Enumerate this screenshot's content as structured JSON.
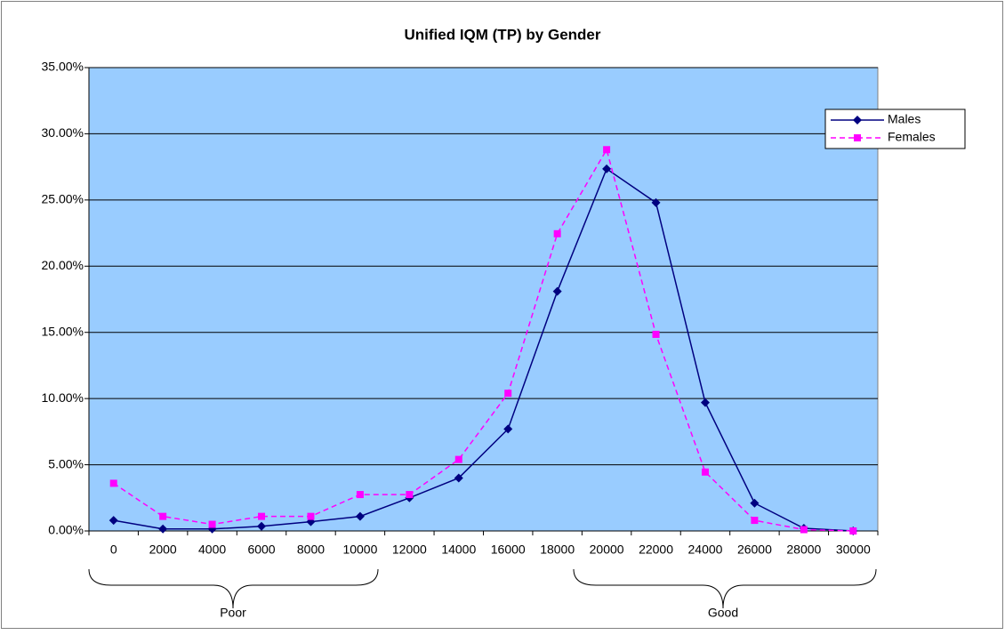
{
  "chart_data": {
    "type": "line",
    "title": "Unified IQM (TP) by Gender",
    "categories": [
      "0",
      "2000",
      "4000",
      "6000",
      "8000",
      "10000",
      "12000",
      "14000",
      "16000",
      "18000",
      "20000",
      "22000",
      "24000",
      "26000",
      "28000",
      "30000"
    ],
    "series": [
      {
        "name": "Males",
        "color": "#000080",
        "line_style": "solid",
        "marker": "diamond",
        "values": [
          0.8,
          0.15,
          0.15,
          0.35,
          0.7,
          1.1,
          2.5,
          4.0,
          7.7,
          18.1,
          27.35,
          24.8,
          9.7,
          2.1,
          0.2,
          0
        ]
      },
      {
        "name": "Females",
        "color": "#ff00ff",
        "line_style": "dashed",
        "marker": "square",
        "values": [
          3.6,
          1.1,
          0.5,
          1.1,
          1.1,
          2.75,
          2.75,
          5.4,
          10.4,
          22.45,
          28.8,
          14.85,
          4.45,
          0.8,
          0.1,
          0
        ]
      }
    ],
    "ylim": [
      0,
      35
    ],
    "yticks": [
      {
        "value": 0,
        "label": "0.00%"
      },
      {
        "value": 5,
        "label": "5.00%"
      },
      {
        "value": 10,
        "label": "10.00%"
      },
      {
        "value": 15,
        "label": "15.00%"
      },
      {
        "value": 20,
        "label": "20.00%"
      },
      {
        "value": 25,
        "label": "25.00%"
      },
      {
        "value": 30,
        "label": "30.00%"
      },
      {
        "value": 35,
        "label": "35.00%"
      }
    ],
    "grid": true,
    "legend": "upper right",
    "plot_background": "#99ccff",
    "annotations": [
      {
        "text": "Poor"
      },
      {
        "text": "Good"
      }
    ]
  }
}
